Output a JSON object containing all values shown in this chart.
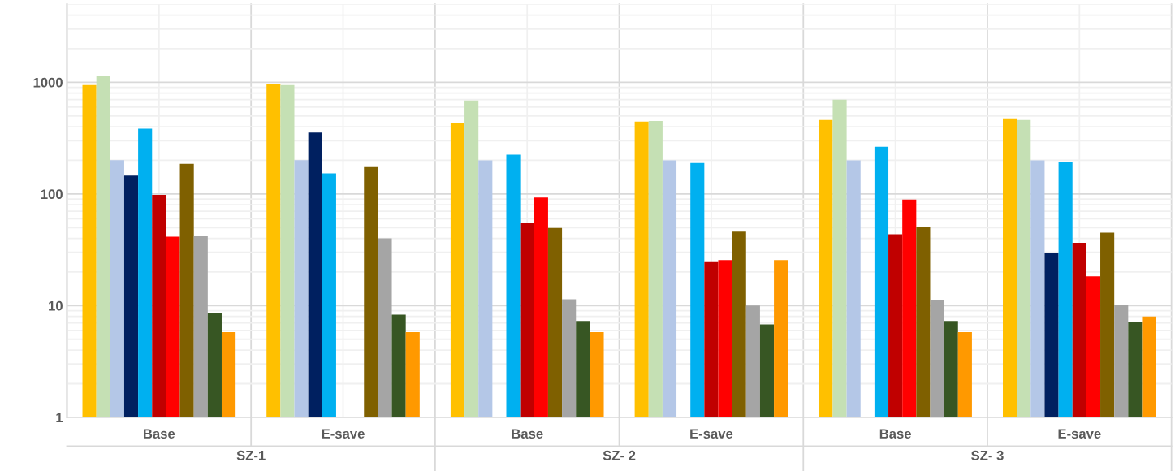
{
  "chart_data": {
    "type": "bar",
    "categories": [
      "Base",
      "E-save",
      "Base",
      "E-save",
      "Base",
      "E-save"
    ],
    "annotations": [
      "SZ-1",
      "SZ- 2",
      "SZ- 3"
    ],
    "log": true,
    "ylim": [
      1,
      5000
    ],
    "yticks": [
      1,
      10,
      100,
      1000
    ],
    "grid": true,
    "series": [
      {
        "color": "#ffc000",
        "values": [
          946,
          967,
          436,
          444,
          459,
          475
        ]
      },
      {
        "color": "#c5e0b4",
        "values": [
          1130,
          946,
          687,
          451,
          699,
          459
        ]
      },
      {
        "color": "#b4c7e7",
        "values": [
          201,
          201,
          200,
          200,
          200,
          200
        ]
      },
      {
        "color": "#002060",
        "values": [
          146,
          355,
          null,
          null,
          null,
          29.6
        ]
      },
      {
        "color": "#00b0f0",
        "values": [
          384,
          153,
          225,
          189,
          265,
          195
        ]
      },
      {
        "color": "#c00000",
        "values": [
          98,
          null,
          55.6,
          24.5,
          43.6,
          36.5
        ]
      },
      {
        "color": "#ff0000",
        "values": [
          41.5,
          null,
          93,
          25.6,
          89,
          18.3
        ]
      },
      {
        "color": "#7f6000",
        "values": [
          186,
          174,
          49.6,
          45.9,
          50.2,
          45.1
        ]
      },
      {
        "color": "#a5a5a5",
        "values": [
          42,
          40,
          11.4,
          10,
          11.2,
          10.2
        ]
      },
      {
        "color": "#375623",
        "values": [
          8.5,
          8.3,
          7.3,
          6.8,
          7.3,
          7.1
        ]
      },
      {
        "color": "#ff9900",
        "values": [
          5.8,
          5.8,
          5.8,
          25.6,
          5.8,
          8.0
        ]
      }
    ]
  }
}
